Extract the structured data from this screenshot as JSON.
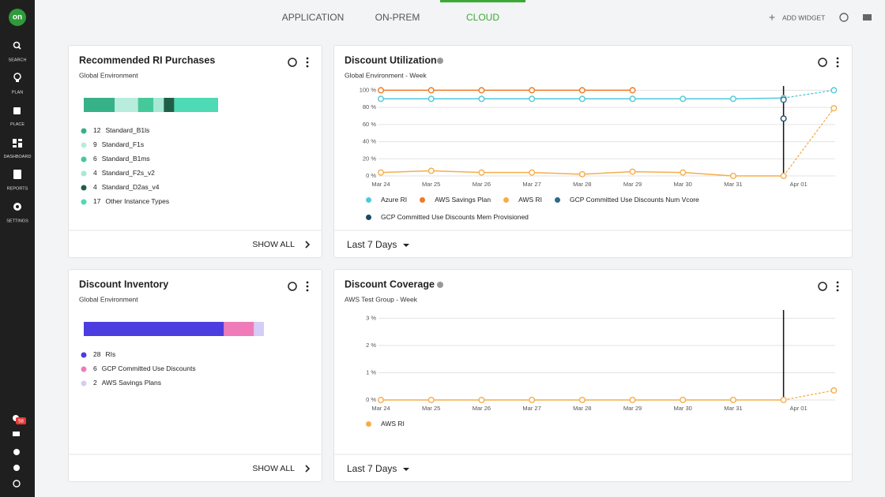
{
  "sidebar": {
    "logo": "on",
    "items": [
      "SEARCH",
      "PLAN",
      "PLACE",
      "DASHBOARD",
      "REPORTS",
      "SETTINGS"
    ],
    "badge": "58"
  },
  "tabs": {
    "items": [
      "APPLICATION",
      "ON-PREM",
      "CLOUD"
    ],
    "active": 2
  },
  "toolbar": {
    "add_widget": "ADD WIDGET"
  },
  "widgets": [
    {
      "title": "Recommended RI Purchases",
      "subtitle": "Global Environment",
      "footer": "SHOW ALL",
      "chart_data": {
        "type": "stacked_bar",
        "categories": [
          "Standard_B1ls",
          "Standard_F1s",
          "Standard_B1ms",
          "Standard_F2s_v2",
          "Standard_D2as_v4",
          "Other Instance Types"
        ],
        "values": [
          12,
          9,
          6,
          4,
          4,
          17
        ],
        "colors": [
          "#37b187",
          "#b8ecdc",
          "#45c99a",
          "#a8e8d5",
          "#1f5f47",
          "#4ddab5"
        ]
      }
    },
    {
      "title": "Discount Utilization",
      "subtitle": "Global Environment - Week",
      "footer": "Last 7 Days",
      "chart_data": {
        "type": "line",
        "categories": [
          "Mar 24",
          "Mar 25",
          "Mar 26",
          "Mar 27",
          "Mar 28",
          "Mar 29",
          "Mar 30",
          "Mar 31",
          "Apr 01",
          null
        ],
        "ylim": [
          0,
          105
        ],
        "yticks": [
          {
            "value": 0,
            "label": "0 %"
          },
          {
            "value": 20,
            "label": "20 %"
          },
          {
            "value": 40,
            "label": "40 %"
          },
          {
            "value": 60,
            "label": "60 %"
          },
          {
            "value": 80,
            "label": "80 %"
          },
          {
            "value": 100,
            "label": "100 %"
          }
        ],
        "grid": true,
        "dashed_last": true,
        "series": [
          {
            "name": "Azure RI",
            "color": "#4fc9dc",
            "values": [
              90,
              90,
              90,
              90,
              90,
              90,
              90,
              90,
              91,
              100
            ]
          },
          {
            "name": "AWS Savings Plan",
            "color": "#f07a22",
            "values": [
              100,
              100,
              100,
              100,
              100,
              100,
              null,
              null,
              null,
              null
            ]
          },
          {
            "name": "AWS RI",
            "color": "#f5ae4a",
            "values": [
              4,
              6,
              4,
              4,
              2,
              5,
              4,
              0,
              0,
              79
            ]
          },
          {
            "name": "GCP Committed Use Discounts Num Vcore",
            "color": "#2b6a8a",
            "values": [
              null,
              null,
              null,
              null,
              null,
              null,
              null,
              null,
              89,
              null
            ]
          },
          {
            "name": "GCP Committed Use Discounts Mem Provisioned",
            "color": "#1d4a63",
            "values": [
              null,
              null,
              null,
              null,
              null,
              null,
              null,
              null,
              67,
              null
            ]
          }
        ]
      }
    },
    {
      "title": "Discount Inventory",
      "subtitle": "Global Environment",
      "footer": "SHOW ALL",
      "chart_data": {
        "type": "stacked_bar",
        "categories": [
          "RIs",
          "GCP Committed Use Discounts",
          "AWS Savings Plans"
        ],
        "values": [
          28,
          6,
          2
        ],
        "colors": [
          "#4c3de0",
          "#ef7bb8",
          "#d4cdf7"
        ]
      }
    },
    {
      "title": "Discount Coverage",
      "subtitle": "AWS Test Group - Week",
      "footer": "Last 7 Days",
      "chart_data": {
        "type": "line",
        "categories": [
          "Mar 24",
          "Mar 25",
          "Mar 26",
          "Mar 27",
          "Mar 28",
          "Mar 29",
          "Mar 30",
          "Mar 31",
          "Apr 01",
          null
        ],
        "ylim": [
          0,
          3.3
        ],
        "yticks": [
          {
            "value": 0,
            "label": "0 %"
          },
          {
            "value": 1,
            "label": "1 %"
          },
          {
            "value": 2,
            "label": "2 %"
          },
          {
            "value": 3,
            "label": "3 %"
          }
        ],
        "grid": true,
        "dashed_last": true,
        "series": [
          {
            "name": "AWS RI",
            "color": "#f5ae4a",
            "values": [
              0,
              0,
              0,
              0,
              0,
              0,
              0,
              0,
              0,
              0.35
            ]
          }
        ]
      }
    }
  ]
}
